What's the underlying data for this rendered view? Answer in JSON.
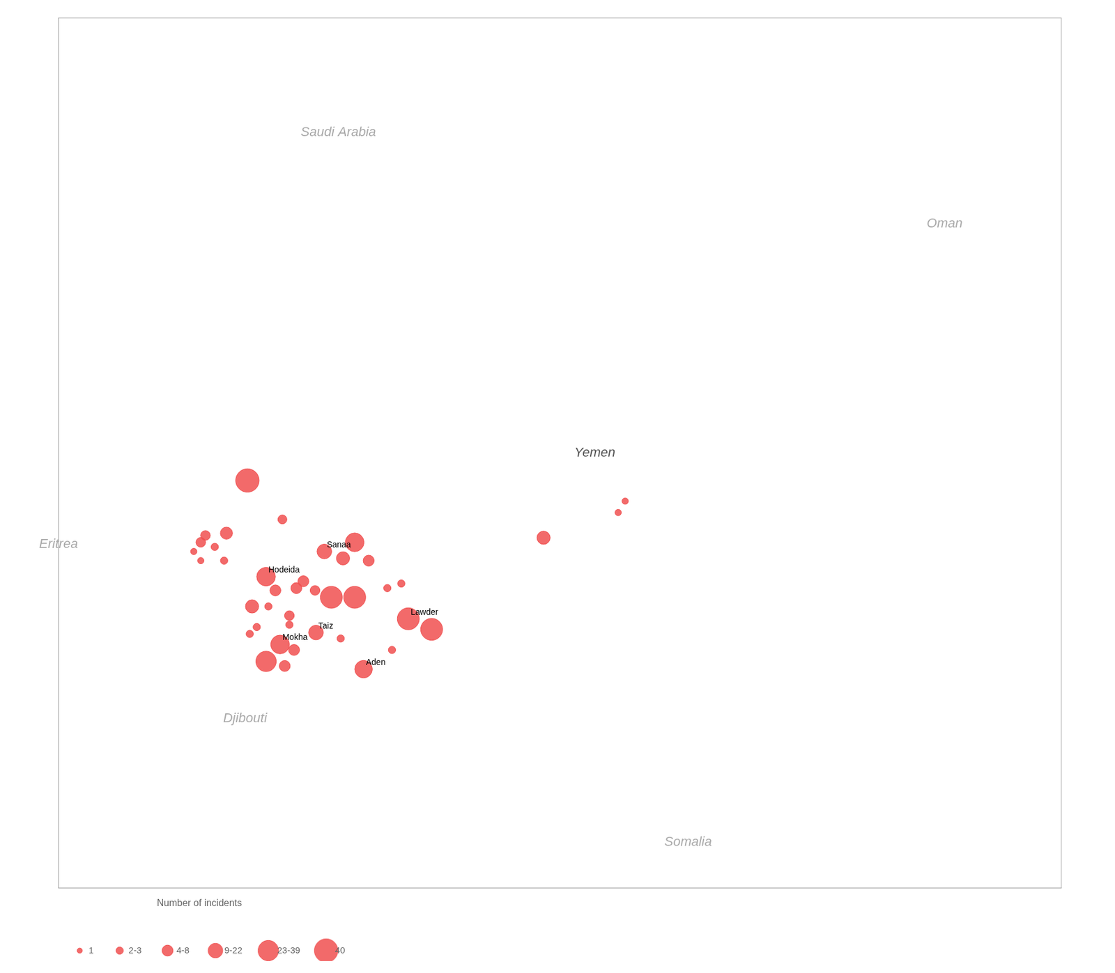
{
  "chart_data": {
    "type": "bubble",
    "x": [
      42.55,
      43.3,
      42.1,
      41.85,
      42.05,
      41.65,
      41.55,
      41.4,
      41.55,
      44.2,
      44.85,
      44.6,
      45.15,
      43.6,
      43.75,
      44.0,
      44.35,
      44.85,
      45.55,
      45.85,
      48.9,
      50.5,
      50.65,
      42.95,
      43.15,
      43.0,
      43.45,
      44.02,
      45.04,
      43.25,
      43.55,
      43.45,
      44.55,
      42.65,
      42.75,
      42.6,
      42.95,
      43.35,
      46.0,
      46.5,
      45.65
    ],
    "y": [
      16.9,
      16.05,
      15.75,
      15.45,
      15.15,
      15.7,
      15.55,
      15.35,
      15.15,
      15.35,
      15.55,
      15.2,
      15.15,
      14.55,
      14.7,
      14.5,
      14.35,
      14.35,
      14.55,
      14.65,
      15.65,
      16.2,
      16.45,
      14.8,
      14.5,
      14.15,
      13.95,
      13.58,
      12.78,
      13.32,
      13.2,
      13.75,
      13.45,
      14.15,
      13.7,
      13.55,
      12.95,
      12.85,
      13.88,
      13.65,
      13.2
    ],
    "sizes": [
      40,
      5,
      10,
      3,
      3,
      6,
      6,
      2,
      2,
      15,
      25,
      12,
      8,
      8,
      8,
      6,
      35,
      35,
      3,
      3,
      12,
      2,
      2,
      25,
      8,
      3,
      6,
      15,
      22,
      25,
      8,
      3,
      3,
      12,
      3,
      3,
      30,
      8,
      35,
      35,
      3
    ],
    "color": "#f05050",
    "xlim": [
      38.5,
      60.0
    ],
    "ylim": [
      8.0,
      27.0
    ],
    "tick_labels": false,
    "grid": false,
    "legend": "lower left",
    "legend_title": "Number of incidents",
    "legend_entries": [
      {
        "label": "1",
        "size": 1
      },
      {
        "label": "2-3",
        "size": 3
      },
      {
        "label": "4-8",
        "size": 8
      },
      {
        "label": "9-22",
        "size": 15
      },
      {
        "label": "23-39",
        "size": 30
      },
      {
        "label": "40",
        "size": 40
      }
    ],
    "annotations": [
      {
        "text": "Saudi Arabia",
        "x": 44.5,
        "y": 24.5,
        "color": "#aaaaaa"
      },
      {
        "text": "Oman",
        "x": 57.5,
        "y": 22.5,
        "color": "#aaaaaa"
      },
      {
        "text": "Yemen",
        "x": 50.0,
        "y": 17.5,
        "color": "#555555"
      },
      {
        "text": "Eritrea",
        "x": 38.5,
        "y": 15.5,
        "color": "#aaaaaa"
      },
      {
        "text": "Djibouti",
        "x": 42.5,
        "y": 11.7,
        "color": "#aaaaaa"
      },
      {
        "text": "Somalia",
        "x": 52.0,
        "y": 9.0,
        "color": "#aaaaaa"
      }
    ],
    "point_labels": [
      {
        "text": "Sanaa",
        "x": 44.2,
        "y": 15.35
      },
      {
        "text": "Hodeida",
        "x": 42.95,
        "y": 14.8
      },
      {
        "text": "Taiz",
        "x": 44.02,
        "y": 13.58
      },
      {
        "text": "Aden",
        "x": 45.04,
        "y": 12.78
      },
      {
        "text": "Mokha",
        "x": 43.25,
        "y": 13.32
      },
      {
        "text": "Lawder",
        "x": 46.0,
        "y": 13.88
      }
    ]
  }
}
